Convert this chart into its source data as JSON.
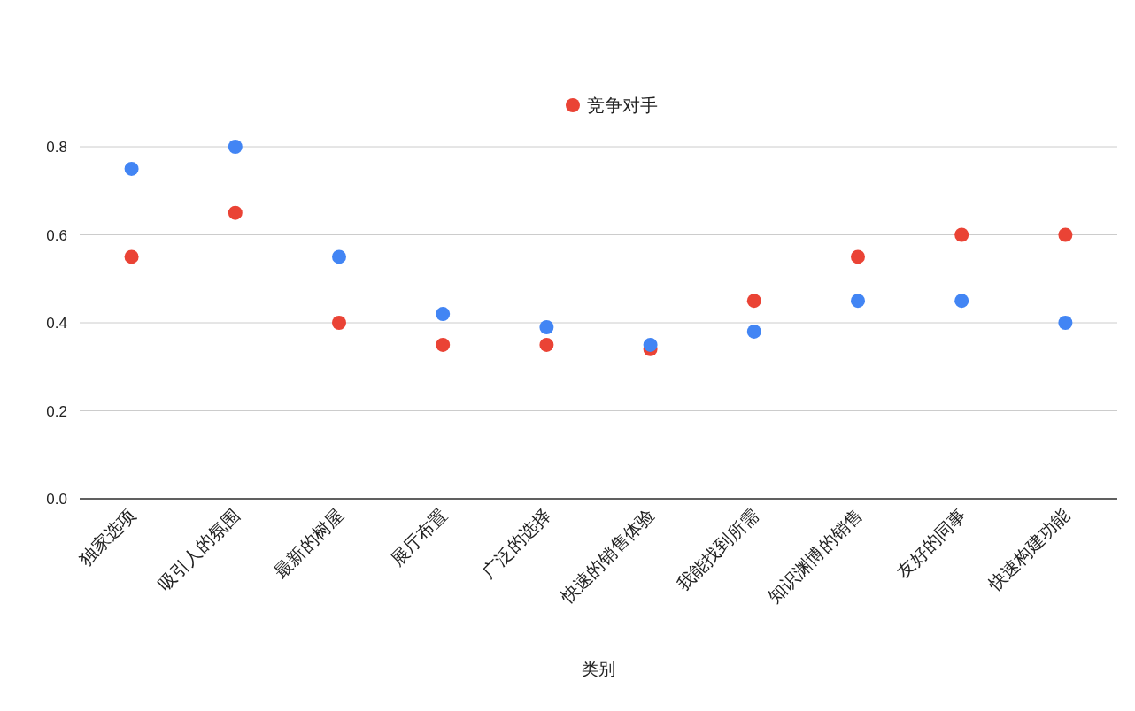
{
  "chart_data": {
    "type": "scatter",
    "xlabel": "类别",
    "categories": [
      "独家选项",
      "吸引人的氛围",
      "最新的树屋",
      "展厅布置",
      "广泛的选择",
      "快速的销售体验",
      "我能找到所需",
      "知识渊博的销售",
      "友好的同事",
      "快速构建功能"
    ],
    "series": [
      {
        "color": "#4285f4",
        "values": [
          0.75,
          0.8,
          0.55,
          0.42,
          0.39,
          0.35,
          0.38,
          0.45,
          0.45,
          0.4
        ]
      },
      {
        "name": "竞争对手",
        "color": "#ea4335",
        "values": [
          0.55,
          0.65,
          0.4,
          0.35,
          0.35,
          0.34,
          0.45,
          0.55,
          0.6,
          0.6
        ]
      }
    ],
    "ylim": [
      0,
      0.8
    ],
    "yticks": [
      {
        "value": 0,
        "label": "0.0"
      },
      {
        "value": 0.2,
        "label": "0.2"
      },
      {
        "value": 0.4,
        "label": "0.4"
      },
      {
        "value": 0.6,
        "label": "0.6"
      },
      {
        "value": 0.8,
        "label": "0.8"
      }
    ],
    "grid": "y",
    "legend": "top",
    "marker": "circle"
  }
}
